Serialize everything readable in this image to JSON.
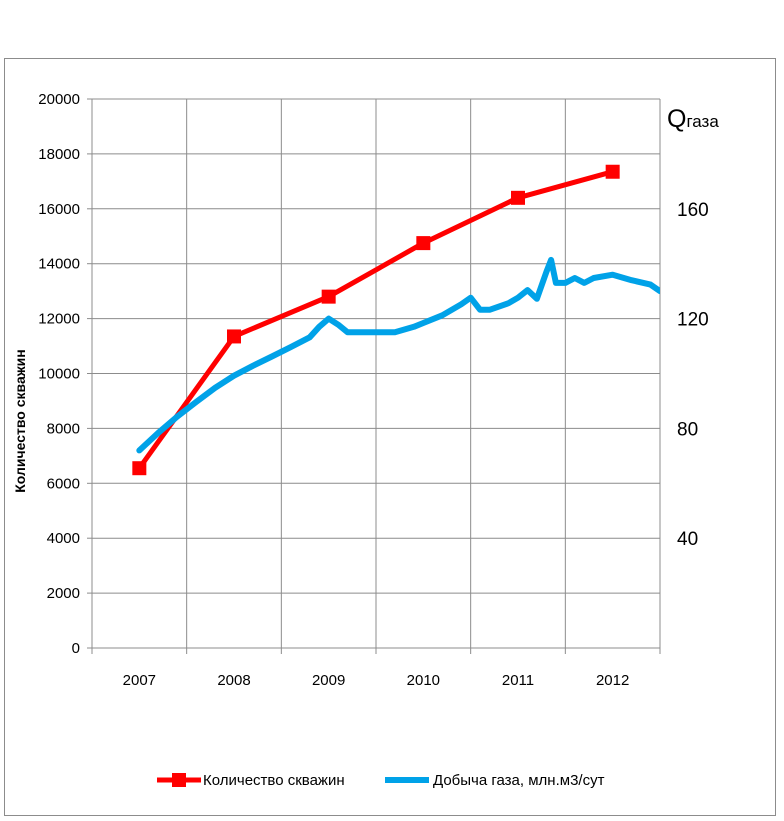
{
  "chart_data": {
    "type": "line",
    "ylabel": "Количество скважин",
    "ylim": [
      0,
      20000
    ],
    "yticks": [
      "0",
      "2000",
      "4000",
      "6000",
      "8000",
      "10000",
      "12000",
      "14000",
      "16000",
      "18000",
      "20000"
    ],
    "xticks": [
      "2007",
      "2008",
      "2009",
      "2010",
      "2011",
      "2012"
    ],
    "xlim": [
      2006.5,
      2012.5
    ],
    "right_axis": {
      "title_main": "Q",
      "title_sub": "газа",
      "ylim": [
        0,
        200
      ],
      "ticks": [
        "40",
        "80",
        "120",
        "160"
      ]
    },
    "grid": true,
    "legend_position": "bottom",
    "series": [
      {
        "name": "Количество скважин",
        "color": "#ff0000",
        "axis": "left",
        "marker": "square",
        "x": [
          2007,
          2008,
          2009,
          2010,
          2011,
          2012
        ],
        "values": [
          6550,
          11350,
          12800,
          14750,
          16400,
          17350
        ]
      },
      {
        "name": "Добыча газа, млн.м3/сут",
        "color": "#00a2e8",
        "axis": "right",
        "marker": "none",
        "x": [
          2007,
          2007.2,
          2007.4,
          2007.6,
          2007.8,
          2008.0,
          2008.2,
          2008.4,
          2008.6,
          2008.8,
          2008.9,
          2009.0,
          2009.1,
          2009.2,
          2009.3,
          2009.5,
          2009.7,
          2009.9,
          2010.0,
          2010.2,
          2010.4,
          2010.5,
          2010.6,
          2010.7,
          2010.9,
          2011.0,
          2011.1,
          2011.2,
          2011.3,
          2011.35,
          2011.4,
          2011.5,
          2011.6,
          2011.7,
          2011.8,
          2012.0,
          2012.2,
          2012.4,
          2012.5
        ],
        "values": [
          72.0,
          78.4,
          84.3,
          89.6,
          94.8,
          99.2,
          102.8,
          106.2,
          109.6,
          113.2,
          117.0,
          120.0,
          117.8,
          115.0,
          115.0,
          115.0,
          115.0,
          117.0,
          118.4,
          121.2,
          125.2,
          127.6,
          123.2,
          123.2,
          125.6,
          127.6,
          130.4,
          127.2,
          137.0,
          141.4,
          133.0,
          133.0,
          134.8,
          133.0,
          134.8,
          136.0,
          134.0,
          132.4,
          130.0
        ]
      }
    ]
  }
}
